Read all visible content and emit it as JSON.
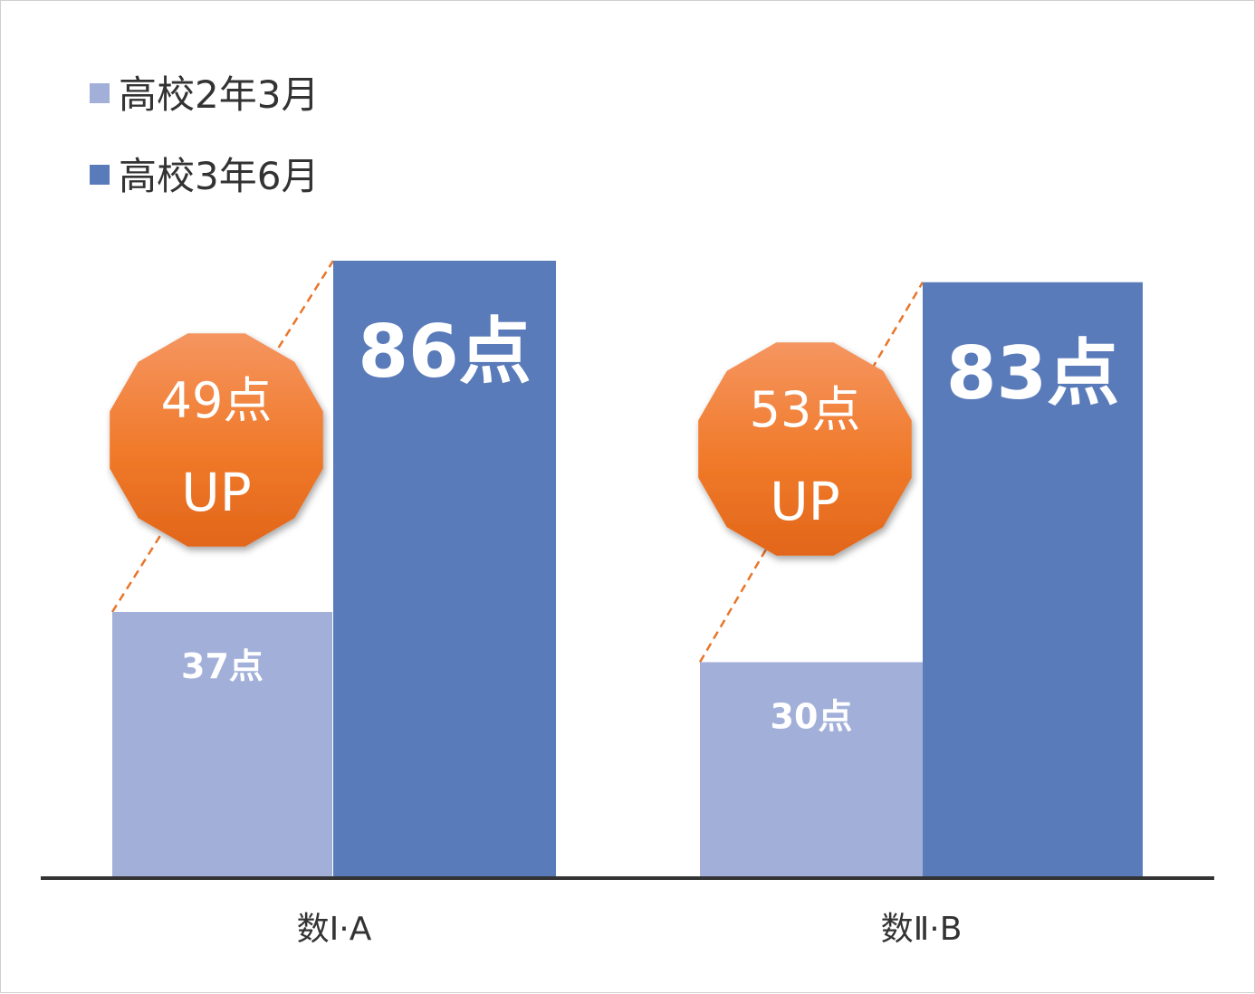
{
  "chart_data": {
    "type": "bar",
    "categories": [
      "数Ⅰ·A",
      "数Ⅱ·B"
    ],
    "series": [
      {
        "name": "高校2年3月",
        "values": [
          37,
          30
        ],
        "labels": [
          "37点",
          "30点"
        ]
      },
      {
        "name": "高校3年6月",
        "values": [
          86,
          83
        ],
        "labels": [
          "86点",
          "83点"
        ]
      }
    ],
    "ylim": [
      0,
      86
    ],
    "grid": false,
    "legend": "top-left",
    "xlabel": "",
    "ylabel": "",
    "annotations": [
      {
        "category": "数Ⅰ·A",
        "line1": "49点",
        "line2": "UP"
      },
      {
        "category": "数Ⅱ·B",
        "line1": "53点",
        "line2": "UP"
      }
    ],
    "colors": {
      "series1": "#a2b0d9",
      "series2": "#5a7bba",
      "badge": "#f07a2a",
      "connector": "#e8752a",
      "axis": "#333333"
    }
  }
}
